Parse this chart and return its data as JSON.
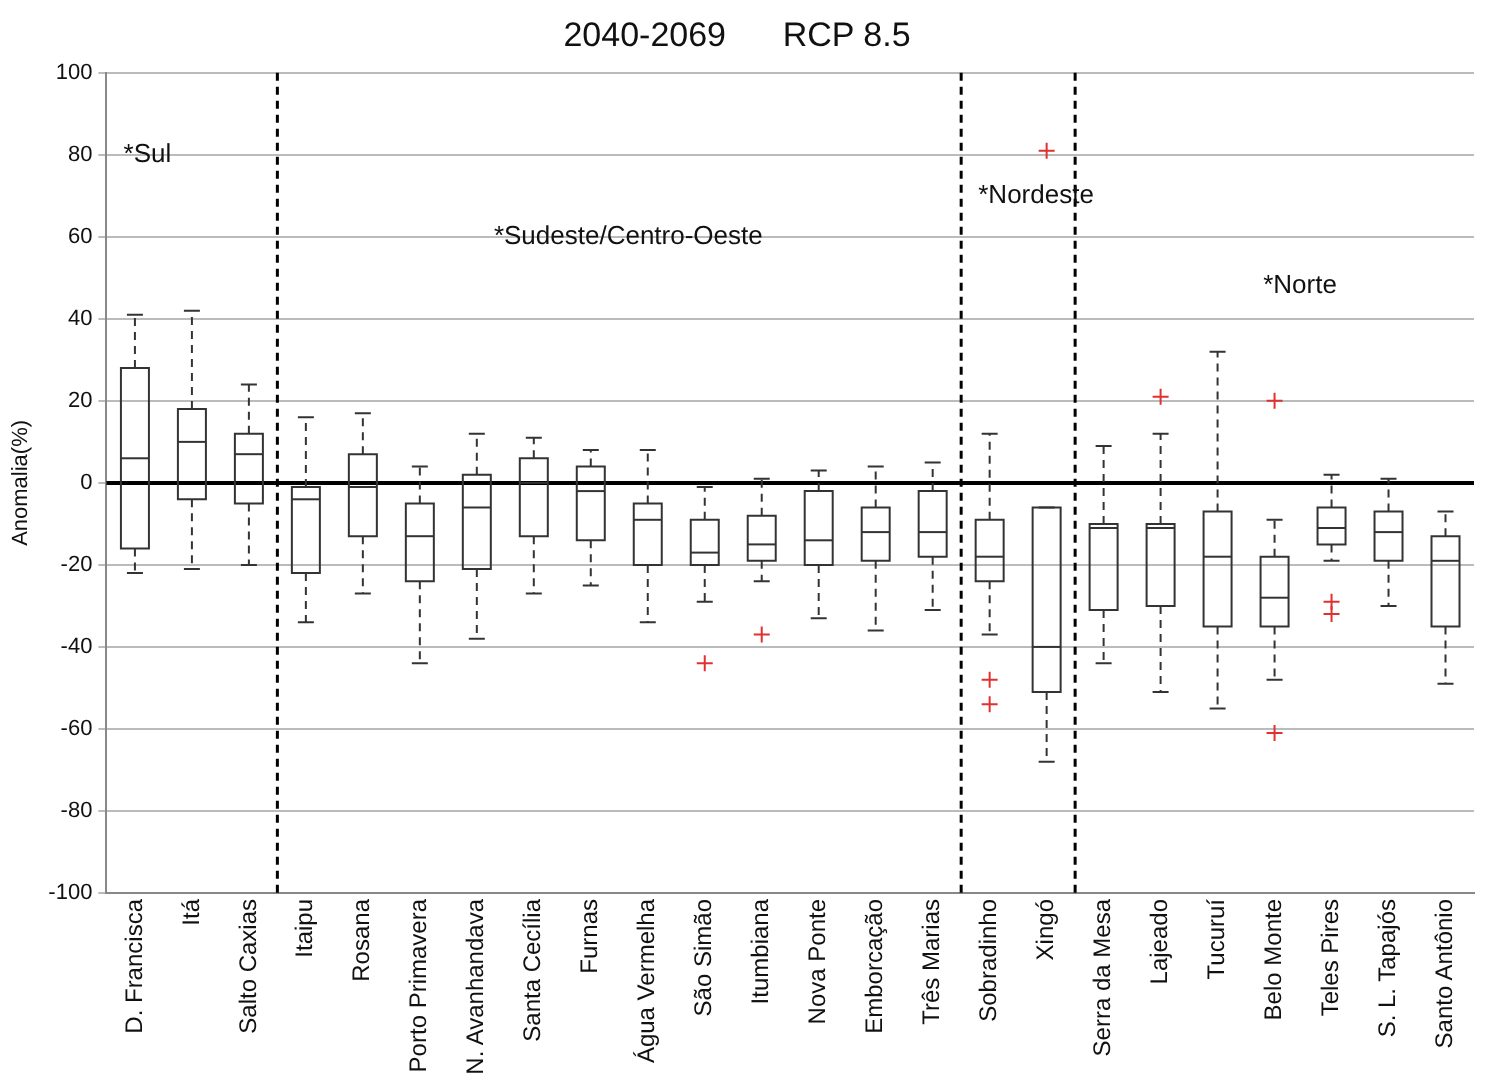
{
  "chart_data": {
    "type": "box",
    "title": "2040-2069      RCP 8.5",
    "ylabel": "Anomalia(%)",
    "categories": [
      "D. Francisca",
      "Itá",
      "Salto Caxias",
      "Itaipu",
      "Rosana",
      "Porto Primavera",
      "N. Avanhandava",
      "Santa Cecília",
      "Furnas",
      "Água Vermelha",
      "São Simão",
      "Itumbiana",
      "Nova Ponte",
      "Emborcação",
      "Três Marias",
      "Sobradinho",
      "Xingó",
      "Serra da Mesa",
      "Lajeado",
      "Tucuruí",
      "Belo Monte",
      "Teles Pires",
      "S. L. Tapajós",
      "Santo Antônio"
    ],
    "color": "#333333",
    "boxes": [
      {
        "low": -22,
        "q1": -16,
        "median": 6,
        "q3": 28,
        "high": 41
      },
      {
        "low": -21,
        "q1": -4,
        "median": 10,
        "q3": 18,
        "high": 42
      },
      {
        "low": -20,
        "q1": -5,
        "median": 7,
        "q3": 12,
        "high": 24
      },
      {
        "low": -34,
        "q1": -22,
        "median": -4,
        "q3": -1,
        "high": 16
      },
      {
        "low": -27,
        "q1": -13,
        "median": -1,
        "q3": 7,
        "high": 17
      },
      {
        "low": -44,
        "q1": -24,
        "median": -13,
        "q3": -5,
        "high": 4
      },
      {
        "low": -38,
        "q1": -21,
        "median": -6,
        "q3": 2,
        "high": 12
      },
      {
        "low": -27,
        "q1": -13,
        "median": 0,
        "q3": 6,
        "high": 11
      },
      {
        "low": -25,
        "q1": -14,
        "median": -2,
        "q3": 4,
        "high": 8
      },
      {
        "low": -34,
        "q1": -20,
        "median": -9,
        "q3": -5,
        "high": 8
      },
      {
        "low": -29,
        "q1": -20,
        "median": -17,
        "q3": -9,
        "high": -1,
        "outliers": [
          -44
        ]
      },
      {
        "low": -24,
        "q1": -19,
        "median": -15,
        "q3": -8,
        "high": 1,
        "outliers": [
          -37
        ]
      },
      {
        "low": -33,
        "q1": -20,
        "median": -14,
        "q3": -2,
        "high": 3
      },
      {
        "low": -36,
        "q1": -19,
        "median": -12,
        "q3": -6,
        "high": 4
      },
      {
        "low": -31,
        "q1": -18,
        "median": -12,
        "q3": -2,
        "high": 5
      },
      {
        "low": -37,
        "q1": -24,
        "median": -18,
        "q3": -9,
        "high": 12,
        "outliers": [
          -48,
          -54
        ]
      },
      {
        "low": -68,
        "q1": -51,
        "median": -40,
        "q3": -6,
        "high": -6,
        "outliers": [
          81
        ]
      },
      {
        "low": -44,
        "q1": -31,
        "median": -11,
        "q3": -10,
        "high": 9
      },
      {
        "low": -51,
        "q1": -30,
        "median": -11,
        "q3": -10,
        "high": 12,
        "outliers": [
          21
        ]
      },
      {
        "low": -55,
        "q1": -35,
        "median": -18,
        "q3": -7,
        "high": 32
      },
      {
        "low": -48,
        "q1": -35,
        "median": -28,
        "q3": -18,
        "high": -9,
        "outliers": [
          20,
          -61
        ]
      },
      {
        "low": -19,
        "q1": -15,
        "median": -11,
        "q3": -6,
        "high": 2,
        "outliers": [
          -29,
          -32
        ]
      },
      {
        "low": -30,
        "q1": -19,
        "median": -12,
        "q3": -7,
        "high": 1
      },
      {
        "low": -49,
        "q1": -35,
        "median": -19,
        "q3": -13,
        "high": -7
      }
    ],
    "ylim": [
      -100,
      100
    ],
    "yticks": [
      -100,
      -80,
      -60,
      -40,
      -20,
      0,
      20,
      40,
      60,
      80,
      100
    ],
    "grid": "y",
    "line_style": "dashed",
    "ref_lines": [
      {
        "axis": "y",
        "value": 0,
        "color": "#000000",
        "line_style": "solid"
      }
    ],
    "annotations": [
      "*Sul",
      "*Sudeste/Centro-Oeste",
      "*Nordeste",
      "*Norte"
    ]
  }
}
